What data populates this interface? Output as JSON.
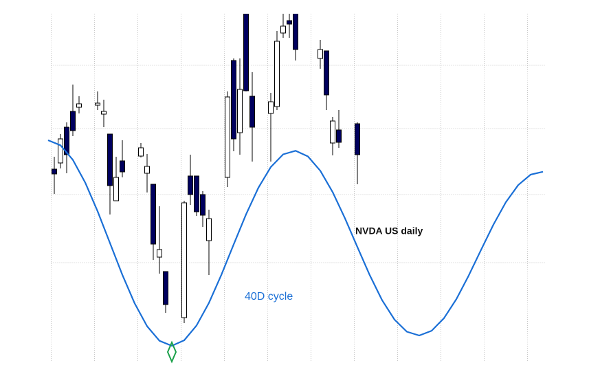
{
  "chart_data": {
    "type": "candlestick",
    "candles": {
      "name": "NVDA US daily",
      "up_color": "#ffffff",
      "down_color": "#00005e",
      "edge_color": "#000000",
      "x": [
        0,
        1,
        2,
        3,
        4,
        7,
        8,
        9,
        10,
        11,
        14,
        15,
        16,
        17,
        18,
        21,
        22,
        23,
        24,
        25,
        28,
        29,
        30,
        31,
        32,
        35,
        36,
        37,
        38,
        39,
        43,
        44,
        45,
        46,
        49
      ],
      "open": [
        298,
        307,
        359,
        382,
        388,
        391,
        378,
        349,
        252,
        310,
        317,
        292,
        276,
        170,
        149,
        82,
        288,
        288,
        261,
        194,
        286,
        456,
        351,
        524,
        404,
        379,
        389,
        496,
        514,
        526,
        459,
        470,
        336,
        355,
        364
      ],
      "high": [
        316,
        349,
        366,
        421,
        404,
        411,
        399,
        349,
        316,
        340,
        336,
        320,
        276,
        244,
        149,
        252,
        319,
        288,
        266,
        239,
        411,
        459,
        459,
        529,
        439,
        409,
        499,
        526,
        524,
        526,
        486,
        470,
        374,
        384,
        366
      ],
      "low": [
        262,
        299,
        292,
        346,
        379,
        384,
        359,
        232,
        252,
        286,
        315,
        264,
        166,
        146,
        89,
        74,
        246,
        230,
        214,
        144,
        272,
        324,
        319,
        411,
        309,
        309,
        384,
        489,
        489,
        456,
        444,
        384,
        318,
        329,
        276
      ],
      "close": [
        291,
        342,
        319,
        354,
        393,
        394,
        382,
        274,
        286,
        294,
        329,
        302,
        189,
        181,
        101,
        249,
        261,
        236,
        231,
        226,
        403,
        342,
        414,
        412,
        359,
        396,
        484,
        506,
        509,
        472,
        472,
        406,
        368,
        337,
        319
      ]
    },
    "series": [
      {
        "name": "40D cycle",
        "color": "#1a6fd6",
        "x": [
          -1,
          1,
          3,
          5,
          7,
          9,
          11,
          13,
          15,
          17,
          19,
          21,
          23,
          25,
          27,
          29,
          31,
          33,
          35,
          37,
          39,
          41,
          43,
          45,
          47,
          49,
          51,
          53,
          55,
          57,
          59,
          61,
          63,
          65,
          67,
          69,
          71,
          73,
          75,
          77,
          79
        ],
        "values": [
          340.0,
          332.7,
          311.5,
          278.4,
          236.7,
          190.5,
          144.3,
          102.6,
          69.5,
          48.3,
          41.0,
          49.0,
          70.6,
          103.4,
          144.1,
          188.5,
          232.2,
          271.0,
          301.0,
          319.5,
          324.7,
          316.5,
          295.7,
          264.6,
          226.3,
          184.7,
          143.7,
          107.3,
          79.1,
          61.5,
          56.0,
          62.9,
          81.2,
          108.9,
          143.3,
          180.7,
          217.4,
          249.9,
          274.8,
          290.0,
          294.2
        ]
      }
    ],
    "xlim": [
      -0.5,
      79.5
    ],
    "ylim": [
      0,
      544
    ],
    "xticks": [
      -0.5,
      6.5,
      13.5,
      20.5,
      27.5,
      34.5,
      41.5,
      48.5,
      55.5,
      62.5,
      69.5,
      76.5
    ],
    "yticks": [
      162,
      261,
      357,
      449
    ],
    "grid": true
  }
}
